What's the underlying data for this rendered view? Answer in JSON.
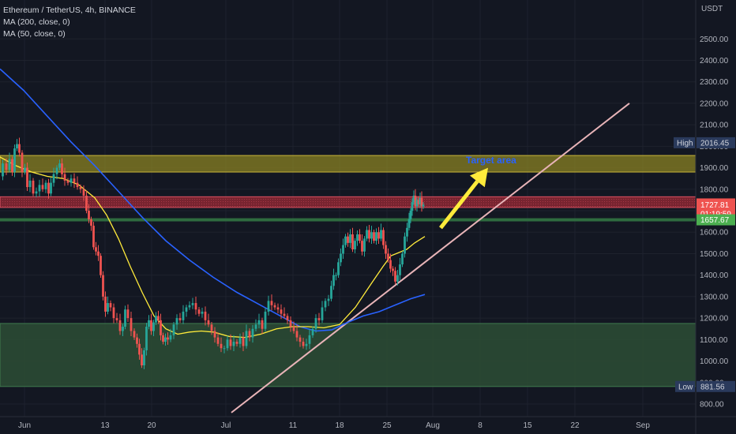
{
  "legend": {
    "title": "Ethereum / TetherUS, 4h, BINANCE",
    "ma200": "MA (200, close, 0)",
    "ma50": "MA (50, close, 0)"
  },
  "chart_data": {
    "type": "candlestick",
    "currency_label": "USDT",
    "y_ticks": [
      800,
      900,
      1000,
      1100,
      1200,
      1300,
      1400,
      1500,
      1600,
      1700,
      1800,
      1900,
      2000,
      2100,
      2200,
      2300,
      2400,
      2500
    ],
    "x_ticks": [
      "Jun",
      "13",
      "20",
      "Jul",
      "11",
      "18",
      "25",
      "Aug",
      "8",
      "15",
      "22",
      "Sep"
    ],
    "ylim": [
      760,
      2580
    ],
    "price_labels": {
      "high_label": "High",
      "high_value": "2016.45",
      "low_label": "Low",
      "low_value": "881.56",
      "last_price": "1727.81",
      "countdown": "01:19:59",
      "green_level": "1657.67"
    },
    "zones": {
      "target_zone": [
        1880,
        1957
      ],
      "resistance_zone": [
        1715,
        1765
      ],
      "support_line": 1657.67,
      "demand_zone": [
        881.56,
        1175
      ]
    },
    "annotation": "Target area",
    "colors": {
      "up": "#26a69a",
      "down": "#ef5350",
      "ma200": "#2962ff",
      "ma50": "#ffeb3b",
      "arrow": "#ffeb3b",
      "annotation": "#2962ff",
      "trendline": "#e8b4b8"
    },
    "price_path": [
      [
        1,
        1860
      ],
      [
        6,
        1920
      ],
      [
        10,
        1890
      ],
      [
        14,
        1940
      ],
      [
        17,
        1880
      ],
      [
        20,
        1990
      ],
      [
        23,
        2010
      ],
      [
        26,
        1970
      ],
      [
        30,
        1880
      ],
      [
        33,
        1900
      ],
      [
        36,
        1810
      ],
      [
        40,
        1840
      ],
      [
        44,
        1780
      ],
      [
        48,
        1790
      ],
      [
        52,
        1820
      ],
      [
        56,
        1800
      ],
      [
        60,
        1830
      ],
      [
        63,
        1780
      ],
      [
        66,
        1830
      ],
      [
        70,
        1870
      ],
      [
        74,
        1900
      ],
      [
        77,
        1920
      ],
      [
        80,
        1870
      ],
      [
        84,
        1840
      ],
      [
        88,
        1830
      ],
      [
        92,
        1850
      ],
      [
        96,
        1830
      ],
      [
        100,
        1810
      ],
      [
        104,
        1800
      ],
      [
        108,
        1770
      ],
      [
        111,
        1700
      ],
      [
        114,
        1660
      ],
      [
        117,
        1630
      ],
      [
        120,
        1530
      ],
      [
        123,
        1510
      ],
      [
        126,
        1490
      ],
      [
        129,
        1400
      ],
      [
        132,
        1300
      ],
      [
        135,
        1230
      ],
      [
        138,
        1270
      ],
      [
        142,
        1250
      ],
      [
        146,
        1200
      ],
      [
        150,
        1190
      ],
      [
        154,
        1140
      ],
      [
        157,
        1160
      ],
      [
        160,
        1240
      ],
      [
        164,
        1200
      ],
      [
        168,
        1140
      ],
      [
        172,
        1110
      ],
      [
        175,
        1080
      ],
      [
        178,
        1030
      ],
      [
        181,
        980
      ],
      [
        184,
        1050
      ],
      [
        187,
        1160
      ],
      [
        190,
        1190
      ],
      [
        193,
        1140
      ],
      [
        196,
        1180
      ],
      [
        199,
        1210
      ],
      [
        202,
        1190
      ],
      [
        205,
        1120
      ],
      [
        208,
        1090
      ],
      [
        211,
        1110
      ],
      [
        214,
        1100
      ],
      [
        218,
        1120
      ],
      [
        222,
        1170
      ],
      [
        226,
        1200
      ],
      [
        230,
        1190
      ],
      [
        234,
        1230
      ],
      [
        238,
        1250
      ],
      [
        242,
        1260
      ],
      [
        246,
        1270
      ],
      [
        250,
        1240
      ],
      [
        254,
        1220
      ],
      [
        258,
        1230
      ],
      [
        262,
        1190
      ],
      [
        266,
        1170
      ],
      [
        270,
        1140
      ],
      [
        274,
        1110
      ],
      [
        278,
        1080
      ],
      [
        282,
        1060
      ],
      [
        286,
        1060
      ],
      [
        290,
        1100
      ],
      [
        294,
        1070
      ],
      [
        298,
        1090
      ],
      [
        302,
        1080
      ],
      [
        306,
        1110
      ],
      [
        310,
        1070
      ],
      [
        314,
        1140
      ],
      [
        318,
        1110
      ],
      [
        322,
        1150
      ],
      [
        326,
        1170
      ],
      [
        330,
        1190
      ],
      [
        334,
        1150
      ],
      [
        338,
        1230
      ],
      [
        342,
        1280
      ],
      [
        346,
        1260
      ],
      [
        350,
        1250
      ],
      [
        354,
        1240
      ],
      [
        358,
        1220
      ],
      [
        362,
        1210
      ],
      [
        366,
        1190
      ],
      [
        370,
        1160
      ],
      [
        374,
        1140
      ],
      [
        378,
        1110
      ],
      [
        382,
        1090
      ],
      [
        386,
        1070
      ],
      [
        390,
        1080
      ],
      [
        394,
        1120
      ],
      [
        398,
        1150
      ],
      [
        402,
        1200
      ],
      [
        406,
        1190
      ],
      [
        410,
        1250
      ],
      [
        414,
        1280
      ],
      [
        418,
        1290
      ],
      [
        421,
        1350
      ],
      [
        424,
        1400
      ],
      [
        427,
        1400
      ],
      [
        430,
        1460
      ],
      [
        433,
        1500
      ],
      [
        436,
        1540
      ],
      [
        439,
        1580
      ],
      [
        442,
        1550
      ],
      [
        445,
        1590
      ],
      [
        448,
        1520
      ],
      [
        451,
        1560
      ],
      [
        454,
        1590
      ],
      [
        457,
        1560
      ],
      [
        460,
        1510
      ],
      [
        463,
        1570
      ],
      [
        466,
        1610
      ],
      [
        469,
        1570
      ],
      [
        472,
        1600
      ],
      [
        475,
        1560
      ],
      [
        478,
        1600
      ],
      [
        481,
        1570
      ],
      [
        484,
        1610
      ],
      [
        487,
        1540
      ],
      [
        490,
        1500
      ],
      [
        493,
        1470
      ],
      [
        496,
        1430
      ],
      [
        499,
        1420
      ],
      [
        502,
        1370
      ],
      [
        505,
        1400
      ],
      [
        508,
        1450
      ],
      [
        511,
        1500
      ],
      [
        514,
        1580
      ],
      [
        517,
        1620
      ],
      [
        519,
        1660
      ],
      [
        521,
        1700
      ],
      [
        523,
        1740
      ],
      [
        525,
        1770
      ],
      [
        527,
        1720
      ],
      [
        529,
        1750
      ],
      [
        531,
        1730
      ],
      [
        533,
        1760
      ],
      [
        535,
        1720
      ],
      [
        537,
        1728
      ]
    ],
    "ma200_path": [
      [
        0,
        2360
      ],
      [
        30,
        2260
      ],
      [
        60,
        2140
      ],
      [
        90,
        2020
      ],
      [
        120,
        1910
      ],
      [
        150,
        1790
      ],
      [
        180,
        1670
      ],
      [
        210,
        1560
      ],
      [
        240,
        1470
      ],
      [
        270,
        1390
      ],
      [
        300,
        1320
      ],
      [
        330,
        1260
      ],
      [
        360,
        1200
      ],
      [
        380,
        1160
      ],
      [
        400,
        1140
      ],
      [
        420,
        1145
      ],
      [
        440,
        1180
      ],
      [
        460,
        1210
      ],
      [
        480,
        1230
      ],
      [
        500,
        1260
      ],
      [
        520,
        1290
      ],
      [
        538,
        1310
      ]
    ],
    "ma50_path": [
      [
        0,
        1950
      ],
      [
        20,
        1910
      ],
      [
        40,
        1880
      ],
      [
        60,
        1860
      ],
      [
        80,
        1850
      ],
      [
        100,
        1820
      ],
      [
        120,
        1760
      ],
      [
        135,
        1680
      ],
      [
        150,
        1570
      ],
      [
        165,
        1440
      ],
      [
        180,
        1320
      ],
      [
        195,
        1210
      ],
      [
        210,
        1150
      ],
      [
        225,
        1125
      ],
      [
        240,
        1135
      ],
      [
        255,
        1140
      ],
      [
        270,
        1135
      ],
      [
        290,
        1115
      ],
      [
        310,
        1110
      ],
      [
        330,
        1125
      ],
      [
        350,
        1150
      ],
      [
        370,
        1160
      ],
      [
        390,
        1160
      ],
      [
        410,
        1155
      ],
      [
        430,
        1170
      ],
      [
        450,
        1250
      ],
      [
        470,
        1360
      ],
      [
        485,
        1440
      ],
      [
        495,
        1490
      ],
      [
        505,
        1505
      ],
      [
        515,
        1520
      ],
      [
        525,
        1550
      ],
      [
        538,
        1580
      ]
    ],
    "trendline": [
      [
        293,
        760
      ],
      [
        797,
        2200
      ]
    ],
    "arrow": [
      [
        558,
        1620
      ],
      [
        618,
        1900
      ]
    ]
  }
}
